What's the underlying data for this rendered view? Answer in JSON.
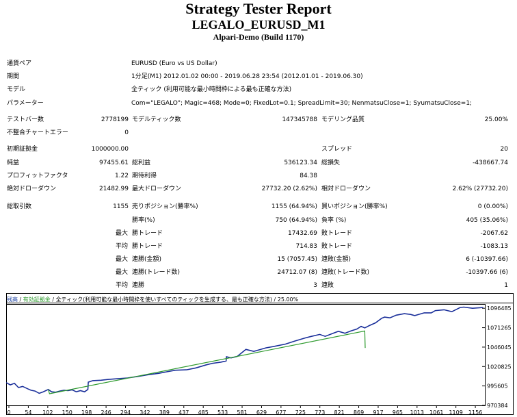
{
  "report": {
    "title": "Strategy Tester Report",
    "expert": "LEGALO_EURUSD_M1",
    "server": "Alpari-Demo (Build 1170)"
  },
  "settings": [
    {
      "label": "通貨ペア",
      "value": "EURUSD (Euro vs US Dollar)"
    },
    {
      "label": "期間",
      "value": "1分足(M1) 2012.01.02 00:00 - 2019.06.28 23:54 (2012.01.01 - 2019.06.30)"
    },
    {
      "label": "モデル",
      "value": "全ティック (利用可能な最小時間枠による最も正確な方法)"
    },
    {
      "label": "パラメーター",
      "value": "Com=\"LEGALO\"; Magic=468; Mode=0; FixedLot=0.1; SpreadLimit=30; NenmatsuClose=1; SyumatsuClose=1;"
    }
  ],
  "stats": {
    "bars_label": "テストバー数",
    "bars": "2778199",
    "ticks_label": "モデルティック数",
    "ticks": "147345788",
    "quality_label": "モデリング品質",
    "quality": "25.00%",
    "mismatch_label": "不整合チャートエラー",
    "mismatch": "0",
    "deposit_label": "初期証拠金",
    "deposit": "1000000.00",
    "spread_label": "スプレッド",
    "spread": "20",
    "net_label": "純益",
    "net": "97455.61",
    "gross_profit_label": "総利益",
    "gross_profit": "536123.34",
    "gross_loss_label": "総損失",
    "gross_loss": "-438667.74",
    "pf_label": "プロフィットファクタ",
    "pf": "1.22",
    "expected_label": "期待利得",
    "expected": "84.38",
    "abs_dd_label": "絶対ドローダウン",
    "abs_dd": "21482.99",
    "max_dd_label": "最大ドローダウン",
    "max_dd": "27732.20 (2.62%)",
    "rel_dd_label": "相対ドローダウン",
    "rel_dd": "2.62% (27732.20)",
    "total_trades_label": "総取引数",
    "total_trades": "1155",
    "short_label": "売りポジション(勝率%)",
    "short": "1155 (64.94%)",
    "long_label": "買いポジション(勝率%)",
    "long": "0 (0.00%)",
    "win_label": "勝率(%)",
    "win": "750 (64.94%)",
    "loss_label": "負率 (%)",
    "loss": "405 (35.06%)",
    "max_win_label": "勝トレード",
    "max_win": "17432.69",
    "max_loss_label": "敗トレード",
    "max_loss": "-2067.62",
    "avg_win_label": "勝トレード",
    "avg_win": "714.83",
    "avg_loss_label": "敗トレード",
    "avg_loss": "-1083.13",
    "cons_win_label": "連勝(金額)",
    "cons_win": "15 (7057.45)",
    "cons_loss_label": "連敗(金額)",
    "cons_loss": "6 (-10397.66)",
    "cons_profit_label": "連勝(トレード数)",
    "cons_profit": "24712.07 (8)",
    "cons_loss2_label": "連敗(トレード数)",
    "cons_loss2": "-10397.66 (6)",
    "avg_cons_win_label": "連勝",
    "avg_cons_win": "3",
    "avg_cons_loss_label": "連敗",
    "avg_cons_loss": "1",
    "max_word": "最大",
    "avg_word": "平均"
  },
  "chart_legend": {
    "balance": "残高",
    "sep1": " / ",
    "margin": "有効証拠金",
    "rest": " / 全ティック(利用可能な最小時間枠を使いすべてのティックを生成する、最も正確な方法) / 25.00%"
  },
  "chart_data": {
    "type": "line",
    "title": "",
    "xlabel": "",
    "ylabel": "",
    "x_ticks": [
      "0",
      "54",
      "102",
      "150",
      "198",
      "246",
      "294",
      "342",
      "389",
      "437",
      "485",
      "533",
      "581",
      "629",
      "677",
      "725",
      "773",
      "821",
      "869",
      "917",
      "965",
      "1013",
      "1061",
      "1109",
      "1156"
    ],
    "y_ticks": [
      "970384",
      "995605",
      "1020825",
      "1046045",
      "1071265",
      "1096485"
    ],
    "ylim": [
      970384,
      1102000
    ],
    "xlim": [
      0,
      1160
    ],
    "series": [
      {
        "color": "#1a2f9a",
        "x": [
          0,
          10,
          20,
          30,
          40,
          54,
          60,
          70,
          80,
          90,
          102,
          110,
          120,
          130,
          140,
          150,
          160,
          170,
          180,
          190,
          198,
          199,
          210,
          230,
          246,
          270,
          294,
          320,
          342,
          370,
          389,
          410,
          437,
          460,
          485,
          500,
          520,
          533,
          534,
          545,
          560,
          581,
          600,
          629,
          650,
          677,
          700,
          725,
          740,
          760,
          773,
          790,
          805,
          821,
          835,
          850,
          860,
          869,
          880,
          895,
          910,
          917,
          930,
          945,
          965,
          980,
          990,
          1013,
          1030,
          1040,
          1061,
          1080,
          1100,
          1109,
          1130,
          1156
        ],
        "y": [
          1000000,
          997000,
          999000,
          993500,
          995000,
          991500,
          990000,
          989000,
          986000,
          988000,
          991000,
          988000,
          987500,
          989000,
          990000,
          989500,
          990500,
          988000,
          989500,
          988000,
          991000,
          1000500,
          1002500,
          1003000,
          1004000,
          1005000,
          1006000,
          1008000,
          1010000,
          1012000,
          1014000,
          1016000,
          1016500,
          1019000,
          1023000,
          1025000,
          1026500,
          1028000,
          1033500,
          1032000,
          1034000,
          1043000,
          1040500,
          1045000,
          1047000,
          1050000,
          1054000,
          1058000,
          1060000,
          1062500,
          1060000,
          1063500,
          1066500,
          1064000,
          1067000,
          1069500,
          1073000,
          1071000,
          1074000,
          1077500,
          1083500,
          1085000,
          1084000,
          1087500,
          1089500,
          1088500,
          1087000,
          1090500,
          1090500,
          1093500,
          1094500,
          1092000,
          1097500,
          1098000,
          1096500,
          1097500
        ]
      },
      {
        "color": "#2e9a2e",
        "x": [
          102,
          105,
          869,
          870
        ],
        "y": [
          991000,
          985500,
          1067000,
          1045000
        ]
      }
    ]
  }
}
